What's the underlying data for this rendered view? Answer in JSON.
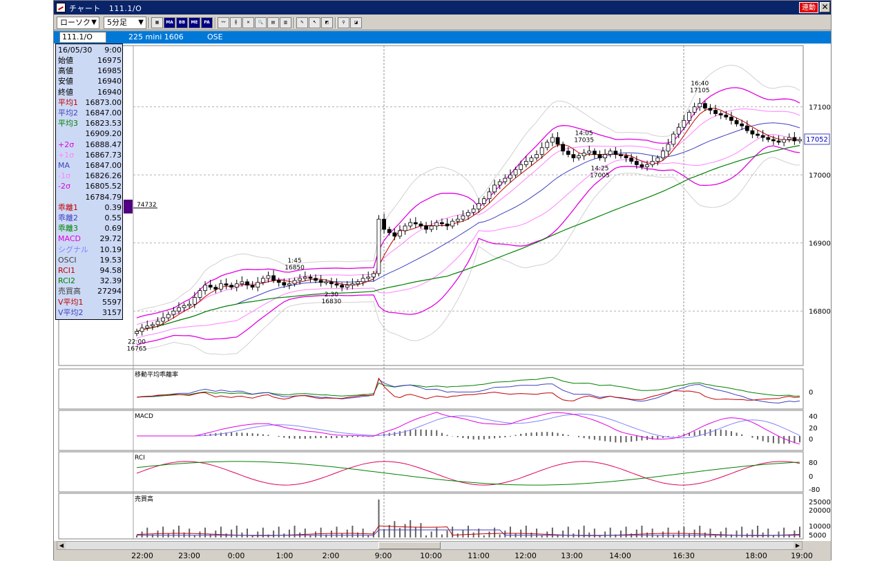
{
  "window": {
    "title": "チャート",
    "code_in_title": "111.1/O",
    "link_button": "連動",
    "close_label": "✕"
  },
  "toolbar": {
    "chart_type": "ローソク",
    "interval": "5分足",
    "buttons": [
      "MA",
      "BB",
      "ME",
      "PA"
    ]
  },
  "code_row": {
    "code": "111.1/O",
    "symbol": "225 mini 1606",
    "exchange": "OSE"
  },
  "info_panel": {
    "date": "16/05/30",
    "time": "9:00",
    "rows": [
      {
        "label": "始値",
        "value": "16975",
        "color": "#000000"
      },
      {
        "label": "高値",
        "value": "16985",
        "color": "#000000"
      },
      {
        "label": "安値",
        "value": "16940",
        "color": "#000000"
      },
      {
        "label": "終値",
        "value": "16940",
        "color": "#000000"
      },
      {
        "label": "平均1",
        "value": "16873.00",
        "color": "#c00000"
      },
      {
        "label": "平均2",
        "value": "16847.00",
        "color": "#4040c0"
      },
      {
        "label": "平均3",
        "value": "16823.53",
        "color": "#008000"
      },
      {
        "label": "",
        "value": "16909.20",
        "color": "#000000"
      },
      {
        "label": "+2σ",
        "value": "16888.47",
        "color": "#e000e0"
      },
      {
        "label": "+1σ",
        "value": "16867.73",
        "color": "#ff80ff"
      },
      {
        "label": "MA",
        "value": "16847.00",
        "color": "#4040c0"
      },
      {
        "label": "-1σ",
        "value": "16826.26",
        "color": "#ff80ff"
      },
      {
        "label": "-2σ",
        "value": "16805.52",
        "color": "#e000e0"
      },
      {
        "label": "",
        "value": "16784.79",
        "color": "#000000"
      },
      {
        "label": "乖離1",
        "value": "0.39",
        "color": "#c00000"
      },
      {
        "label": "乖離2",
        "value": "0.55",
        "color": "#4040c0"
      },
      {
        "label": "乖離3",
        "value": "0.69",
        "color": "#008000"
      },
      {
        "label": "MACD",
        "value": "29.72",
        "color": "#e000e0"
      },
      {
        "label": "シグナル",
        "value": "10.19",
        "color": "#8080ff"
      },
      {
        "label": "OSCI",
        "value": "19.53",
        "color": "#404040"
      },
      {
        "label": "RCI1",
        "value": "94.58",
        "color": "#c00000"
      },
      {
        "label": "RCI2",
        "value": "32.39",
        "color": "#008000"
      },
      {
        "label": "売買高",
        "value": "27294",
        "color": "#404040"
      },
      {
        "label": "V平均1",
        "value": "5597",
        "color": "#c00000"
      },
      {
        "label": "V平均2",
        "value": "3157",
        "color": "#4040c0"
      }
    ]
  },
  "chart_data": {
    "type": "candlestick",
    "price_axis": {
      "ticks": [
        17100,
        17000,
        16900,
        16800
      ],
      "range": [
        16720,
        17190
      ]
    },
    "current_price_label": "17052",
    "volume_profile_label": "74732",
    "time_labels": [
      "22:00",
      "23:00",
      "0:00",
      "1:00",
      "2:00",
      "9:00",
      "10:00",
      "11:00",
      "12:00",
      "13:00",
      "14:00",
      "16:30",
      "18:00",
      "19:00"
    ],
    "annotations": [
      {
        "time": "22:00",
        "price": "16765"
      },
      {
        "time": "1:45",
        "price": "16850"
      },
      {
        "time": "2:30",
        "price": "16830"
      },
      {
        "time": "14:05",
        "price": "17035"
      },
      {
        "time": "14:25",
        "price": "17005"
      },
      {
        "time": "16:40",
        "price": "17105"
      }
    ],
    "sub_panels": [
      {
        "title": "移動平均乖離率",
        "ticks": [
          "0"
        ]
      },
      {
        "title": "MACD",
        "ticks": [
          "40",
          "20",
          "0"
        ]
      },
      {
        "title": "RCI",
        "ticks": [
          "80",
          "0",
          "-80"
        ]
      },
      {
        "title": "売買高",
        "ticks": [
          "25000",
          "20000",
          "10000",
          "5000"
        ]
      }
    ],
    "closes": [
      16770,
      16775,
      16778,
      16780,
      16785,
      16790,
      16795,
      16800,
      16805,
      16808,
      16810,
      16820,
      16830,
      16838,
      16835,
      16832,
      16840,
      16838,
      16835,
      16840,
      16843,
      16838,
      16835,
      16842,
      16848,
      16852,
      16845,
      16842,
      16838,
      16840,
      16845,
      16848,
      16850,
      16848,
      16845,
      16842,
      16843,
      16840,
      16838,
      16835,
      16838,
      16840,
      16843,
      16848,
      16850,
      16855,
      16935,
      16920,
      16915,
      16910,
      16918,
      16925,
      16930,
      16928,
      16925,
      16920,
      16925,
      16930,
      16928,
      16925,
      16932,
      16935,
      16940,
      16945,
      16950,
      16958,
      16965,
      16975,
      16985,
      16990,
      16995,
      17000,
      17008,
      17015,
      17020,
      17025,
      17030,
      17040,
      17048,
      17055,
      17045,
      17035,
      17030,
      17025,
      17028,
      17032,
      17035,
      17030,
      17025,
      17030,
      17035,
      17030,
      17028,
      17025,
      17020,
      17015,
      17012,
      17015,
      17020,
      17025,
      17035,
      17045,
      17060,
      17070,
      17080,
      17092,
      17100,
      17105,
      17098,
      17095,
      17090,
      17088,
      17085,
      17080,
      17075,
      17072,
      17065,
      17060,
      17058,
      17055,
      17052,
      17050,
      17048,
      17052,
      17055,
      17050,
      17052
    ]
  }
}
